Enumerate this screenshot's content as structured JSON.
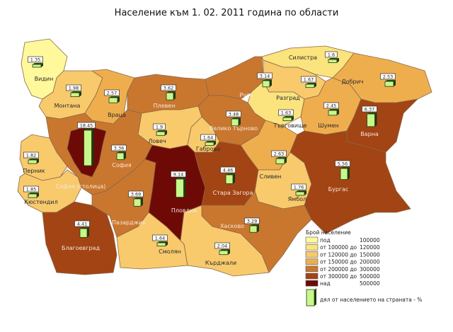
{
  "title": "Население към 1. 02. 2011 година по области",
  "classes": [
    {
      "label": "под",
      "range": "100000",
      "color": "#fff99c"
    },
    {
      "label": "от 100000 до",
      "range": "120000",
      "color": "#fbe37e"
    },
    {
      "label": "от 120000 до",
      "range": "150000",
      "color": "#f8ca6c"
    },
    {
      "label": "от 150000 до",
      "range": "200000",
      "color": "#efae4e"
    },
    {
      "label": "от 200000 до",
      "range": "300000",
      "color": "#c9772f"
    },
    {
      "label": "от 300000 до",
      "range": "500000",
      "color": "#a34414"
    },
    {
      "label": "над",
      "range": "500000",
      "color": "#6e0a06"
    }
  ],
  "legend": {
    "title": "Брой население",
    "bar_label": "дял от населението на страната - %",
    "bar_color": "#c8f78a"
  },
  "regions": [
    {
      "name": "Видин",
      "share": "1.35",
      "class": 0
    },
    {
      "name": "Монтана",
      "share": "1.98",
      "class": 2
    },
    {
      "name": "Враца",
      "share": "2.57",
      "class": 3
    },
    {
      "name": "Плевен",
      "share": "3.62",
      "class": 4
    },
    {
      "name": "Русе",
      "share": "3.14",
      "class": 4
    },
    {
      "name": "Силистра",
      "share": "1.6",
      "class": 1
    },
    {
      "name": "Добрич",
      "share": "2.53",
      "class": 3
    },
    {
      "name": "Разград",
      "share": "1.67",
      "class": 2
    },
    {
      "name": "Търговище",
      "share": "1.63",
      "class": 1
    },
    {
      "name": "Шумен",
      "share": "2.45",
      "class": 3
    },
    {
      "name": "Варна",
      "share": "6.37",
      "class": 5
    },
    {
      "name": "Велико Търново",
      "share": "3.48",
      "class": 4
    },
    {
      "name": "Ловеч",
      "share": "1.9",
      "class": 2
    },
    {
      "name": "Габрово",
      "share": "1.64",
      "class": 2
    },
    {
      "name": "София",
      "share": "3.36",
      "class": 4
    },
    {
      "name": "София (столица)",
      "share": "18.45",
      "class": 6
    },
    {
      "name": "Перник",
      "share": "1.82",
      "class": 2
    },
    {
      "name": "Кюстендил",
      "share": "1.85",
      "class": 2
    },
    {
      "name": "Благоевград",
      "share": "4.41",
      "class": 5
    },
    {
      "name": "Пазарджик",
      "share": "3.69",
      "class": 4
    },
    {
      "name": "Пловдив",
      "share": "9.14",
      "class": 6
    },
    {
      "name": "Стара Загора",
      "share": "4.46",
      "class": 5
    },
    {
      "name": "Сливен",
      "share": "2.63",
      "class": 3
    },
    {
      "name": "Ямбол",
      "share": "1.76",
      "class": 2
    },
    {
      "name": "Бургас",
      "share": "5.56",
      "class": 5
    },
    {
      "name": "Хасково",
      "share": "3.29",
      "class": 4
    },
    {
      "name": "Смолян",
      "share": "1.64",
      "class": 2
    },
    {
      "name": "Кърджали",
      "share": "2.04",
      "class": 2
    }
  ]
}
